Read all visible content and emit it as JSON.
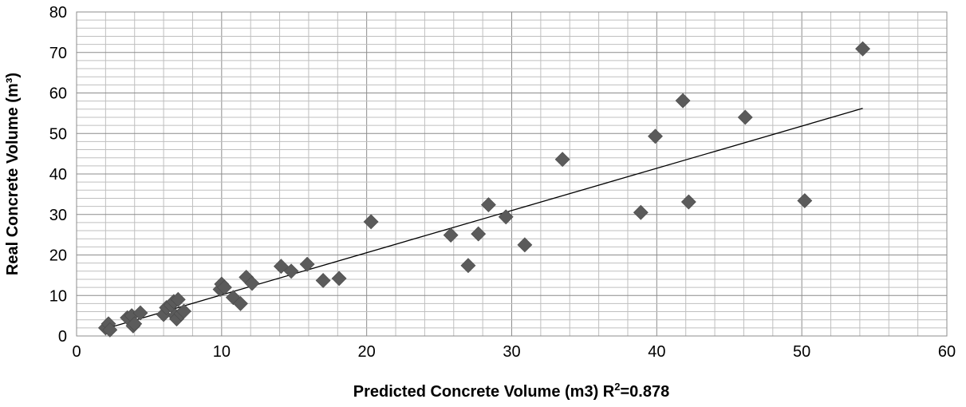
{
  "chart_data": {
    "type": "scatter",
    "xlabel": "Predicted Concrete Volume (m3) R",
    "xlabel_sup": "2",
    "xlabel_suffix": "=0.878",
    "ylabel": "Real Concrete Volume (m³)",
    "xlim": [
      0,
      60
    ],
    "ylim": [
      0,
      80
    ],
    "x_ticks": [
      0,
      10,
      20,
      30,
      40,
      50,
      60
    ],
    "y_ticks": [
      0,
      10,
      20,
      30,
      40,
      50,
      60,
      70,
      80
    ],
    "grid": true,
    "marker_color": "#5b5b5b",
    "gridline_color": "#a6a6a6",
    "trendline": {
      "x": [
        2.0,
        54.2
      ],
      "y": [
        1.8,
        56.2
      ]
    },
    "series": [
      {
        "points": [
          {
            "x": 2.0,
            "y": 2.0
          },
          {
            "x": 2.2,
            "y": 3.0
          },
          {
            "x": 2.3,
            "y": 1.5
          },
          {
            "x": 3.5,
            "y": 4.5
          },
          {
            "x": 3.8,
            "y": 5.0
          },
          {
            "x": 3.9,
            "y": 2.5
          },
          {
            "x": 4.0,
            "y": 3.0
          },
          {
            "x": 4.4,
            "y": 5.7
          },
          {
            "x": 6.0,
            "y": 5.3
          },
          {
            "x": 6.2,
            "y": 7.0
          },
          {
            "x": 6.5,
            "y": 7.6
          },
          {
            "x": 6.7,
            "y": 8.5
          },
          {
            "x": 6.8,
            "y": 5.0
          },
          {
            "x": 6.9,
            "y": 4.2
          },
          {
            "x": 7.0,
            "y": 9.0
          },
          {
            "x": 7.2,
            "y": 5.5
          },
          {
            "x": 7.4,
            "y": 6.1
          },
          {
            "x": 9.9,
            "y": 11.5
          },
          {
            "x": 10.0,
            "y": 12.8
          },
          {
            "x": 10.2,
            "y": 12.0
          },
          {
            "x": 10.8,
            "y": 9.5
          },
          {
            "x": 11.3,
            "y": 8.0
          },
          {
            "x": 11.7,
            "y": 14.5
          },
          {
            "x": 12.1,
            "y": 13.0
          },
          {
            "x": 14.1,
            "y": 17.2
          },
          {
            "x": 14.8,
            "y": 16.0
          },
          {
            "x": 15.9,
            "y": 17.7
          },
          {
            "x": 17.0,
            "y": 13.7
          },
          {
            "x": 18.1,
            "y": 14.2
          },
          {
            "x": 20.3,
            "y": 28.2
          },
          {
            "x": 25.8,
            "y": 24.9
          },
          {
            "x": 27.0,
            "y": 17.4
          },
          {
            "x": 27.7,
            "y": 25.2
          },
          {
            "x": 28.4,
            "y": 32.4
          },
          {
            "x": 29.6,
            "y": 29.4
          },
          {
            "x": 30.9,
            "y": 22.5
          },
          {
            "x": 33.5,
            "y": 43.6
          },
          {
            "x": 38.9,
            "y": 30.5
          },
          {
            "x": 39.9,
            "y": 49.3
          },
          {
            "x": 41.8,
            "y": 58.1
          },
          {
            "x": 42.2,
            "y": 33.1
          },
          {
            "x": 46.1,
            "y": 54.0
          },
          {
            "x": 50.2,
            "y": 33.4
          },
          {
            "x": 54.2,
            "y": 70.9
          }
        ]
      }
    ]
  }
}
